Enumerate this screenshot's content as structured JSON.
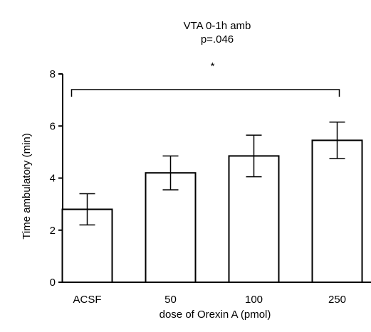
{
  "chart_data": {
    "type": "bar",
    "title": "VTA 0-1h amb",
    "subtitle": "p=.046",
    "xlabel": "dose of Orexin A (pmol)",
    "ylabel": "Time ambulatory (min)",
    "ylim": [
      0,
      8
    ],
    "yticks": [
      "0",
      "2",
      "4",
      "6",
      "8"
    ],
    "categories": [
      "ACSF",
      "50",
      "100",
      "250"
    ],
    "values": [
      2.8,
      4.2,
      4.85,
      5.45
    ],
    "errors": [
      0.6,
      0.65,
      0.8,
      0.7
    ],
    "significance": {
      "label": "*",
      "from": "ACSF",
      "to": "250"
    },
    "grid": false,
    "colors": {
      "bar_fill": "#ffffff",
      "stroke": "#000000"
    }
  }
}
